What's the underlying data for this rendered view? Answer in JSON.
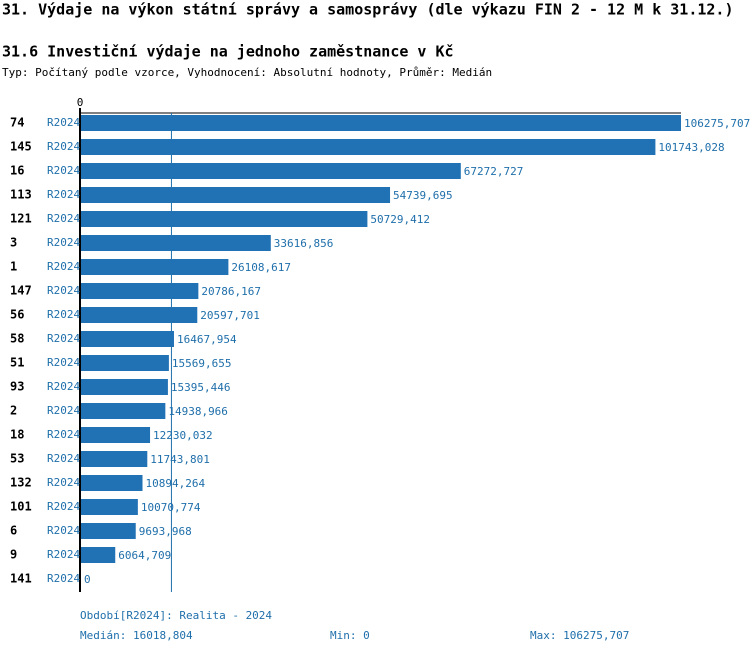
{
  "header": {
    "title": "31. Výdaje na výkon státní správy a samosprávy (dle výkazu FIN 2 - 12 M k 31.12.)"
  },
  "chart_data": {
    "type": "bar",
    "orientation": "horizontal",
    "title": "31.6 Investiční výdaje na jednoho zaměstnance v Kč",
    "subtitle": "Typ: Počítaný podle vzorce, Vyhodnocení: Absolutní hodnoty, Průměr: Medián",
    "categories": [
      "74",
      "145",
      "16",
      "113",
      "121",
      "3",
      "1",
      "147",
      "56",
      "58",
      "51",
      "93",
      "2",
      "18",
      "53",
      "132",
      "101",
      "6",
      "9",
      "141"
    ],
    "periods": [
      "R2024",
      "R2024",
      "R2024",
      "R2024",
      "R2024",
      "R2024",
      "R2024",
      "R2024",
      "R2024",
      "R2024",
      "R2024",
      "R2024",
      "R2024",
      "R2024",
      "R2024",
      "R2024",
      "R2024",
      "R2024",
      "R2024",
      "R2024"
    ],
    "values": [
      106275.707,
      101743.028,
      67272.727,
      54739.695,
      50729.412,
      33616.856,
      26108.617,
      20786.167,
      20597.701,
      16467.954,
      15569.655,
      15395.446,
      14938.966,
      12230.032,
      11743.801,
      10894.264,
      10070.774,
      9693.968,
      6064.709,
      0
    ],
    "value_labels": [
      "106275,707",
      "101743,028",
      "67272,727",
      "54739,695",
      "50729,412",
      "33616,856",
      "26108,617",
      "20786,167",
      "20597,701",
      "16467,954",
      "15569,655",
      "15395,446",
      "14938,966",
      "12230,032",
      "11743,801",
      "10894,264",
      "10070,774",
      "9693,968",
      "6064,709",
      "0"
    ],
    "color": "#2171b5",
    "median": 16018.804,
    "xlim": [
      0,
      106275.707
    ],
    "xticks": [
      0
    ]
  },
  "footer": {
    "period": "Období[R2024]: Realita - 2024",
    "median": "Medián: 16018,804",
    "min": "Min: 0",
    "max": "Max: 106275,707"
  }
}
